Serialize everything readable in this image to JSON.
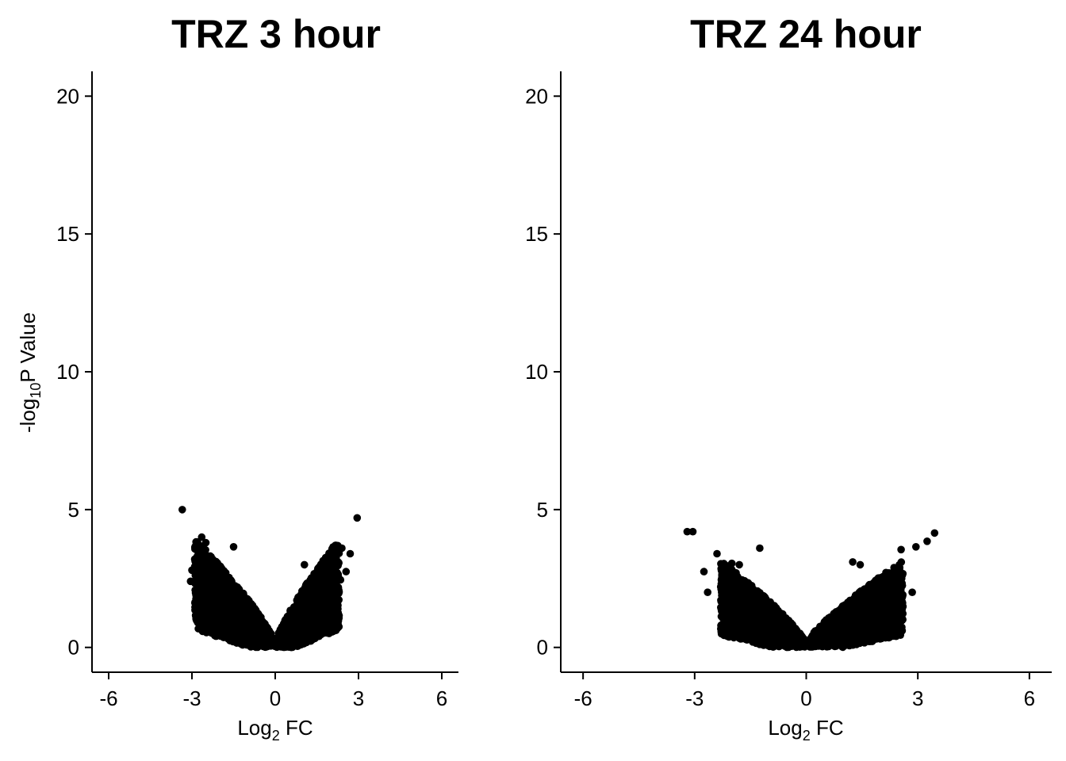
{
  "chart_data": [
    {
      "type": "scatter",
      "title": "TRZ 3 hour",
      "xlabel_main": "Log",
      "xlabel_sub": "2",
      "xlabel_rest": " FC",
      "ylabel_pre": "-log",
      "ylabel_sub": "10",
      "ylabel_rest": "P Value",
      "xlim": [
        -6.6,
        6.6
      ],
      "ylim": [
        -0.9,
        20.9
      ],
      "xticks": [
        -6,
        -3,
        0,
        3,
        6
      ],
      "xtick_labels": [
        "-6",
        "-3",
        "0",
        "3",
        "6"
      ],
      "yticks": [
        0,
        5,
        10,
        15,
        20
      ],
      "ytick_labels": [
        "0",
        "5",
        "10",
        "15",
        "20"
      ],
      "point_color": "#000000",
      "distribution": {
        "left_x_min": -2.9,
        "right_x_max": 2.3,
        "y_max_core": 3.8,
        "n_points": 2600
      },
      "series": [
        {
          "outliers": [
            {
              "x": -3.35,
              "y": 5.0
            },
            {
              "x": 2.95,
              "y": 4.7
            },
            {
              "x": -2.65,
              "y": 4.0
            },
            {
              "x": -2.5,
              "y": 3.8
            },
            {
              "x": -2.85,
              "y": 3.55
            },
            {
              "x": -1.5,
              "y": 3.65
            },
            {
              "x": 2.2,
              "y": 3.7
            },
            {
              "x": 2.4,
              "y": 3.6
            },
            {
              "x": 2.7,
              "y": 3.4
            },
            {
              "x": -2.9,
              "y": 3.2
            },
            {
              "x": -3.0,
              "y": 2.8
            },
            {
              "x": -3.05,
              "y": 2.4
            },
            {
              "x": 1.05,
              "y": 3.0
            },
            {
              "x": 2.05,
              "y": 1.0
            },
            {
              "x": 1.75,
              "y": 1.25
            },
            {
              "x": 2.55,
              "y": 2.75
            },
            {
              "x": 2.35,
              "y": 2.45
            }
          ]
        }
      ]
    },
    {
      "type": "scatter",
      "title": "TRZ 24 hour",
      "xlabel_main": "Log",
      "xlabel_sub": "2",
      "xlabel_rest": " FC",
      "xlim": [
        -6.6,
        6.6
      ],
      "ylim": [
        -0.9,
        20.9
      ],
      "xticks": [
        -6,
        -3,
        0,
        3,
        6
      ],
      "xtick_labels": [
        "-6",
        "-3",
        "0",
        "3",
        "6"
      ],
      "yticks": [
        0,
        5,
        10,
        15,
        20
      ],
      "ytick_labels": [
        "0",
        "5",
        "10",
        "15",
        "20"
      ],
      "point_color": "#000000",
      "distribution": {
        "left_x_min": -2.3,
        "right_x_max": 2.6,
        "y_max_core": 3.0,
        "n_points": 2600
      },
      "series": [
        {
          "outliers": [
            {
              "x": -3.2,
              "y": 4.2
            },
            {
              "x": -3.05,
              "y": 4.2
            },
            {
              "x": 3.45,
              "y": 4.15
            },
            {
              "x": 3.25,
              "y": 3.85
            },
            {
              "x": 2.55,
              "y": 3.55
            },
            {
              "x": 2.95,
              "y": 3.65
            },
            {
              "x": -1.25,
              "y": 3.6
            },
            {
              "x": -2.4,
              "y": 3.4
            },
            {
              "x": -2.0,
              "y": 3.05
            },
            {
              "x": -2.75,
              "y": 2.75
            },
            {
              "x": -2.65,
              "y": 2.0
            },
            {
              "x": -1.8,
              "y": 3.0
            },
            {
              "x": 1.25,
              "y": 3.1
            },
            {
              "x": 2.85,
              "y": 2.0
            },
            {
              "x": 2.55,
              "y": 1.85
            },
            {
              "x": 1.45,
              "y": 3.0
            }
          ]
        }
      ]
    }
  ]
}
